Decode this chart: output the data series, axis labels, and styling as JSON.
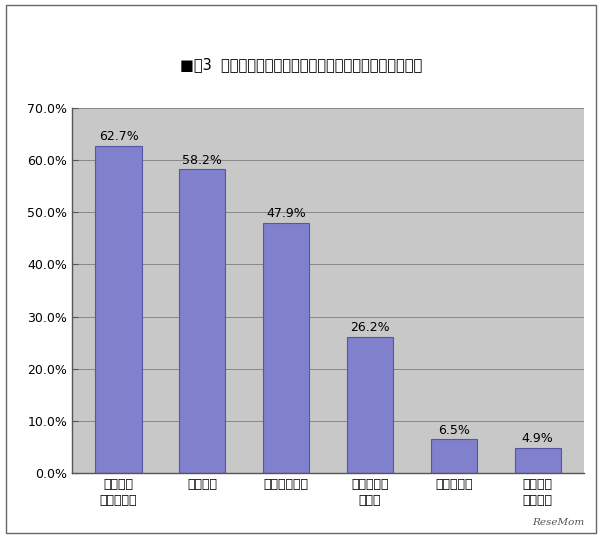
{
  "title": "■嘦3  高卒後、「秋入学」までの過ごし方（複数回答可）",
  "categories": [
    "入学へ向\nけての学習",
    "社会体験",
    "ボランティア",
    "インターン\nシップ",
    "アルバイト",
    "部活動で\n後輩指導"
  ],
  "values": [
    62.7,
    58.2,
    47.9,
    26.2,
    6.5,
    4.9
  ],
  "bar_color": "#8080cc",
  "bar_edgecolor": "#5555aa",
  "ylim": [
    0,
    70
  ],
  "yticks": [
    0.0,
    10.0,
    20.0,
    30.0,
    40.0,
    50.0,
    60.0,
    70.0
  ],
  "ytick_labels": [
    "0.0%",
    "10.0%",
    "20.0%",
    "30.0%",
    "40.0%",
    "50.0%",
    "60.0%",
    "70.0%"
  ],
  "plot_bg_color": "#c8c8c8",
  "outer_bg_color": "#ffffff",
  "title_area_color": "#ffffff",
  "grid_color": "#aaaaaa",
  "title_fontsize": 10.5,
  "label_fontsize": 9,
  "value_fontsize": 9,
  "tick_fontsize": 9,
  "watermark": "ReseMom"
}
